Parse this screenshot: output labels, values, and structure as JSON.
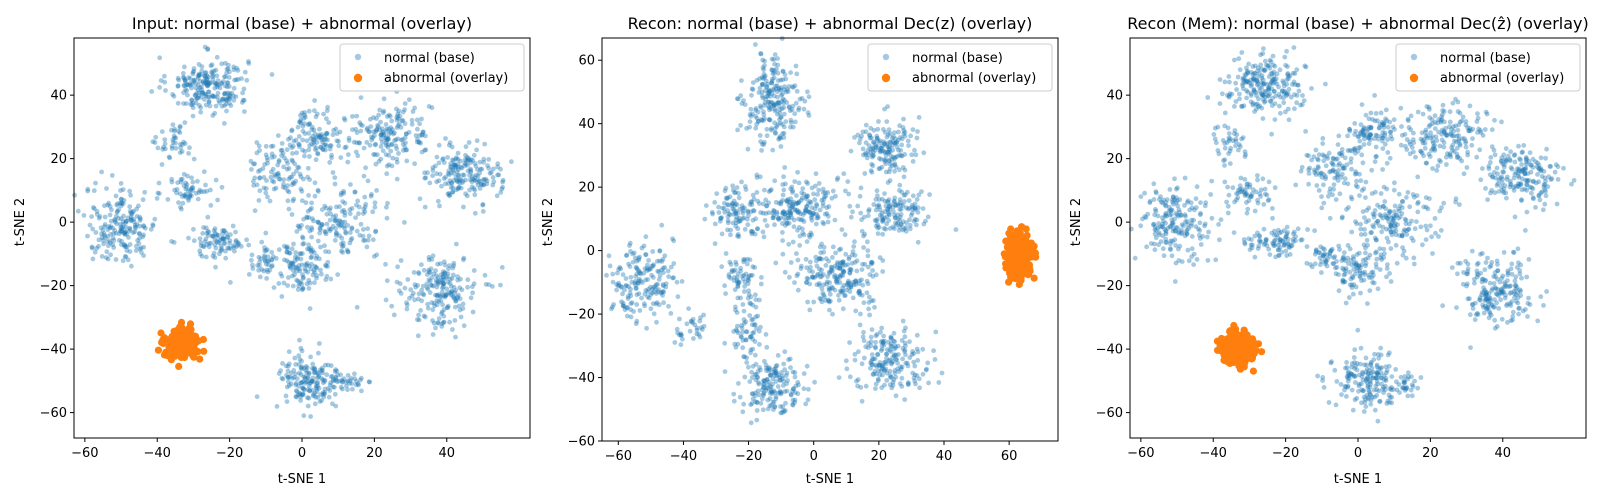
{
  "chart_data": [
    {
      "type": "scatter",
      "title": "Input: normal (base) + abnormal (overlay)",
      "xlabel": "t-SNE 1",
      "ylabel": "t-SNE 2",
      "xlim": [
        -63,
        63
      ],
      "ylim": [
        -68,
        58
      ],
      "xticks": [
        -60,
        -40,
        -20,
        0,
        20,
        40
      ],
      "yticks": [
        -60,
        -40,
        -20,
        0,
        20,
        40
      ],
      "legend_position": "upper right",
      "series": [
        {
          "name": "normal (base)",
          "color": "#1f77b4",
          "clusters": [
            {
              "cx": -26,
              "cy": 43,
              "sx": 5.5,
              "sy": 4.5,
              "n": 220
            },
            {
              "cx": -35,
              "cy": 25,
              "sx": 2.5,
              "sy": 3,
              "n": 40
            },
            {
              "cx": -31,
              "cy": 10,
              "sx": 3.5,
              "sy": 3,
              "n": 60
            },
            {
              "cx": -50,
              "cy": -1,
              "sx": 5,
              "sy": 6,
              "n": 190
            },
            {
              "cx": -23,
              "cy": -6,
              "sx": 4.5,
              "sy": 2.5,
              "n": 90
            },
            {
              "cx": -6,
              "cy": 16,
              "sx": 4.5,
              "sy": 5,
              "n": 110
            },
            {
              "cx": 4,
              "cy": 28,
              "sx": 3.5,
              "sy": 4,
              "n": 100
            },
            {
              "cx": 24,
              "cy": 27,
              "sx": 6,
              "sy": 5,
              "n": 180
            },
            {
              "cx": 45,
              "cy": 15,
              "sx": 5,
              "sy": 4.5,
              "n": 180
            },
            {
              "cx": 10,
              "cy": 0,
              "sx": 7,
              "sy": 6,
              "n": 170
            },
            {
              "cx": 0,
              "cy": -15,
              "sx": 4,
              "sy": 4,
              "n": 100
            },
            {
              "cx": -10,
              "cy": -12,
              "sx": 2.5,
              "sy": 2.5,
              "n": 40
            },
            {
              "cx": 38,
              "cy": -22,
              "sx": 5.5,
              "sy": 5.5,
              "n": 200
            },
            {
              "cx": 2,
              "cy": -50,
              "sx": 4.5,
              "sy": 5,
              "n": 170
            },
            {
              "cx": 13,
              "cy": -51,
              "sx": 3.5,
              "sy": 1.5,
              "n": 30
            }
          ]
        },
        {
          "name": "abnormal (overlay)",
          "color": "#ff7f0e",
          "clusters": [
            {
              "cx": -33,
              "cy": -38,
              "sx": 2.2,
              "sy": 2.3,
              "n": 260
            }
          ]
        }
      ]
    },
    {
      "type": "scatter",
      "title": "Recon: normal (base) + abnormal Dec(z) (overlay)",
      "xlabel": "t-SNE 1",
      "ylabel": "t-SNE 2",
      "xlim": [
        -65,
        75
      ],
      "ylim": [
        -60,
        67
      ],
      "xticks": [
        -60,
        -40,
        -20,
        0,
        20,
        40,
        60
      ],
      "yticks": [
        -60,
        -40,
        -20,
        0,
        20,
        40,
        60
      ],
      "legend_position": "upper right",
      "series": [
        {
          "name": "normal (base)",
          "color": "#1f77b4",
          "clusters": [
            {
              "cx": -12,
              "cy": 47,
              "sx": 4.5,
              "sy": 7,
              "n": 220
            },
            {
              "cx": -25,
              "cy": 12,
              "sx": 4,
              "sy": 4,
              "n": 100
            },
            {
              "cx": -5,
              "cy": 14,
              "sx": 6.5,
              "sy": 5,
              "n": 210
            },
            {
              "cx": 22,
              "cy": 33,
              "sx": 4.5,
              "sy": 4.5,
              "n": 160
            },
            {
              "cx": 25,
              "cy": 12,
              "sx": 5,
              "sy": 4,
              "n": 140
            },
            {
              "cx": -53,
              "cy": -10,
              "sx": 5,
              "sy": 6,
              "n": 180
            },
            {
              "cx": -38,
              "cy": -24,
              "sx": 2.5,
              "sy": 2.5,
              "n": 30
            },
            {
              "cx": -22,
              "cy": -8,
              "sx": 2.5,
              "sy": 3.5,
              "n": 60
            },
            {
              "cx": -20,
              "cy": -25,
              "sx": 2.5,
              "sy": 4.5,
              "n": 60
            },
            {
              "cx": 8,
              "cy": -8,
              "sx": 7,
              "sy": 5,
              "n": 220
            },
            {
              "cx": -13,
              "cy": -42,
              "sx": 5,
              "sy": 4.5,
              "n": 170
            },
            {
              "cx": 24,
              "cy": -34,
              "sx": 6,
              "sy": 5,
              "n": 190
            }
          ]
        },
        {
          "name": "abnormal (overlay)",
          "color": "#ff7f0e",
          "clusters": [
            {
              "cx": 63,
              "cy": -2,
              "sx": 2,
              "sy": 3.2,
              "n": 260
            }
          ]
        }
      ]
    },
    {
      "type": "scatter",
      "title": "Recon (Mem): normal (base) + abnormal Dec(ẑ) (overlay)",
      "xlabel": "t-SNE 1",
      "ylabel": "t-SNE 2",
      "xlim": [
        -63,
        63
      ],
      "ylim": [
        -68,
        58
      ],
      "xticks": [
        -60,
        -40,
        -20,
        0,
        20,
        40
      ],
      "yticks": [
        -60,
        -40,
        -20,
        0,
        20,
        40
      ],
      "legend_position": "upper right",
      "series": [
        {
          "name": "normal (base)",
          "color": "#1f77b4",
          "clusters": [
            {
              "cx": -26,
              "cy": 43,
              "sx": 5.5,
              "sy": 4.5,
              "n": 220
            },
            {
              "cx": -35,
              "cy": 25,
              "sx": 2.5,
              "sy": 3,
              "n": 40
            },
            {
              "cx": -31,
              "cy": 10,
              "sx": 3.5,
              "sy": 3,
              "n": 60
            },
            {
              "cx": -50,
              "cy": -1,
              "sx": 5,
              "sy": 6,
              "n": 190
            },
            {
              "cx": -23,
              "cy": -6,
              "sx": 4.5,
              "sy": 2.5,
              "n": 90
            },
            {
              "cx": -6,
              "cy": 16,
              "sx": 4.5,
              "sy": 5,
              "n": 110
            },
            {
              "cx": 4,
              "cy": 28,
              "sx": 3.5,
              "sy": 4,
              "n": 100
            },
            {
              "cx": 24,
              "cy": 27,
              "sx": 6,
              "sy": 5,
              "n": 180
            },
            {
              "cx": 45,
              "cy": 15,
              "sx": 5,
              "sy": 4.5,
              "n": 180
            },
            {
              "cx": 10,
              "cy": 0,
              "sx": 7,
              "sy": 6,
              "n": 170
            },
            {
              "cx": 0,
              "cy": -15,
              "sx": 4,
              "sy": 4,
              "n": 100
            },
            {
              "cx": -10,
              "cy": -12,
              "sx": 2.5,
              "sy": 2.5,
              "n": 40
            },
            {
              "cx": 38,
              "cy": -22,
              "sx": 5.5,
              "sy": 5.5,
              "n": 200
            },
            {
              "cx": 2,
              "cy": -50,
              "sx": 4.5,
              "sy": 5,
              "n": 170
            },
            {
              "cx": 13,
              "cy": -51,
              "sx": 3.5,
              "sy": 1.5,
              "n": 30
            }
          ]
        },
        {
          "name": "abnormal (overlay)",
          "color": "#ff7f0e",
          "clusters": [
            {
              "cx": -33,
              "cy": -40,
              "sx": 2.3,
              "sy": 2.5,
              "n": 260
            }
          ]
        }
      ]
    }
  ]
}
